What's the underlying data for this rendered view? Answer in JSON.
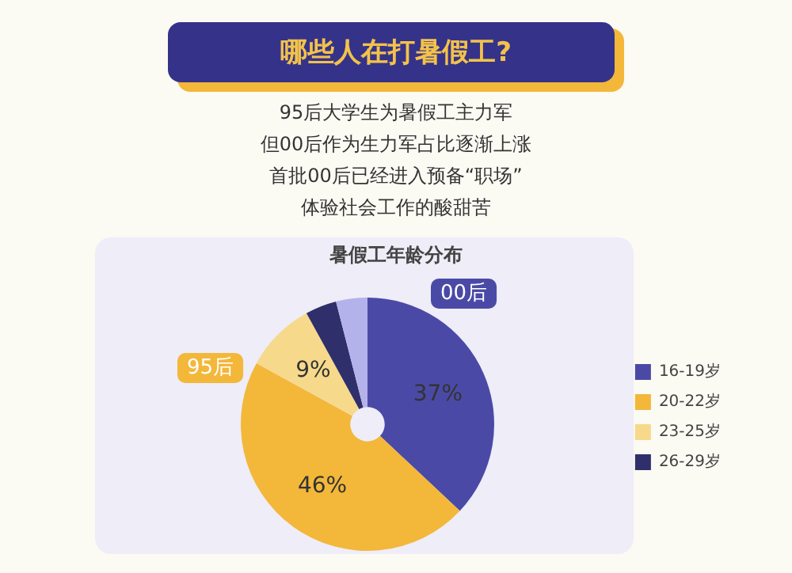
{
  "chart_data": {
    "type": "donut",
    "title": "哪些人在打暑假工?",
    "annotations": [
      "95后大学生为暑假工主力军",
      "但00后作为生力军占比逐渐上涨",
      "首批00后已经进入预备“职场”",
      "体验社会工作的酸甜苦",
      "暑假工年龄分布",
      "00后",
      "95后"
    ],
    "categories": [
      "16-19岁",
      "20-22岁",
      "23-25岁",
      "26-29岁",
      null
    ],
    "values": [
      37,
      46,
      9,
      4,
      4
    ],
    "colors": [
      "#4a4aa6",
      "#f3b73a",
      "#f7d98c",
      "#2f2f6b",
      "#b4b2ea"
    ],
    "value_labels": [
      "37%",
      "46%",
      "9%",
      null,
      null
    ],
    "legend": "right"
  }
}
